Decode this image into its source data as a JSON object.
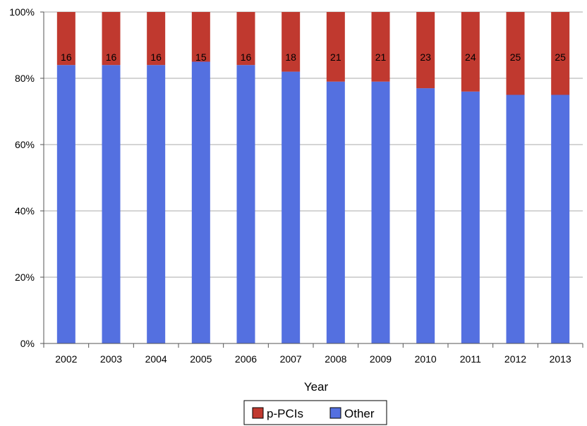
{
  "chart_data": {
    "type": "bar",
    "stacked": true,
    "percent_stacked": true,
    "categories": [
      "2002",
      "2003",
      "2004",
      "2005",
      "2006",
      "2007",
      "2008",
      "2009",
      "2010",
      "2011",
      "2012",
      "2013"
    ],
    "series": [
      {
        "name": "p-PCIs",
        "color": "#c0392f",
        "values": [
          16,
          16,
          16,
          15,
          16,
          18,
          21,
          21,
          23,
          24,
          25,
          25
        ]
      },
      {
        "name": "Other",
        "color": "#5470e0",
        "values": [
          84,
          84,
          84,
          85,
          84,
          82,
          79,
          79,
          77,
          76,
          75,
          75
        ]
      }
    ],
    "data_labels": [
      "16",
      "16",
      "16",
      "15",
      "16",
      "18",
      "21",
      "21",
      "23",
      "24",
      "25",
      "25"
    ],
    "y_ticks": [
      "0%",
      "20%",
      "40%",
      "60%",
      "80%",
      "100%"
    ],
    "ylim": [
      0,
      100
    ],
    "xlabel": "Year",
    "ylabel": "",
    "title": "",
    "grid": true,
    "legend_placement": "bottom-center",
    "legend": [
      "p-PCIs",
      "Other"
    ]
  }
}
